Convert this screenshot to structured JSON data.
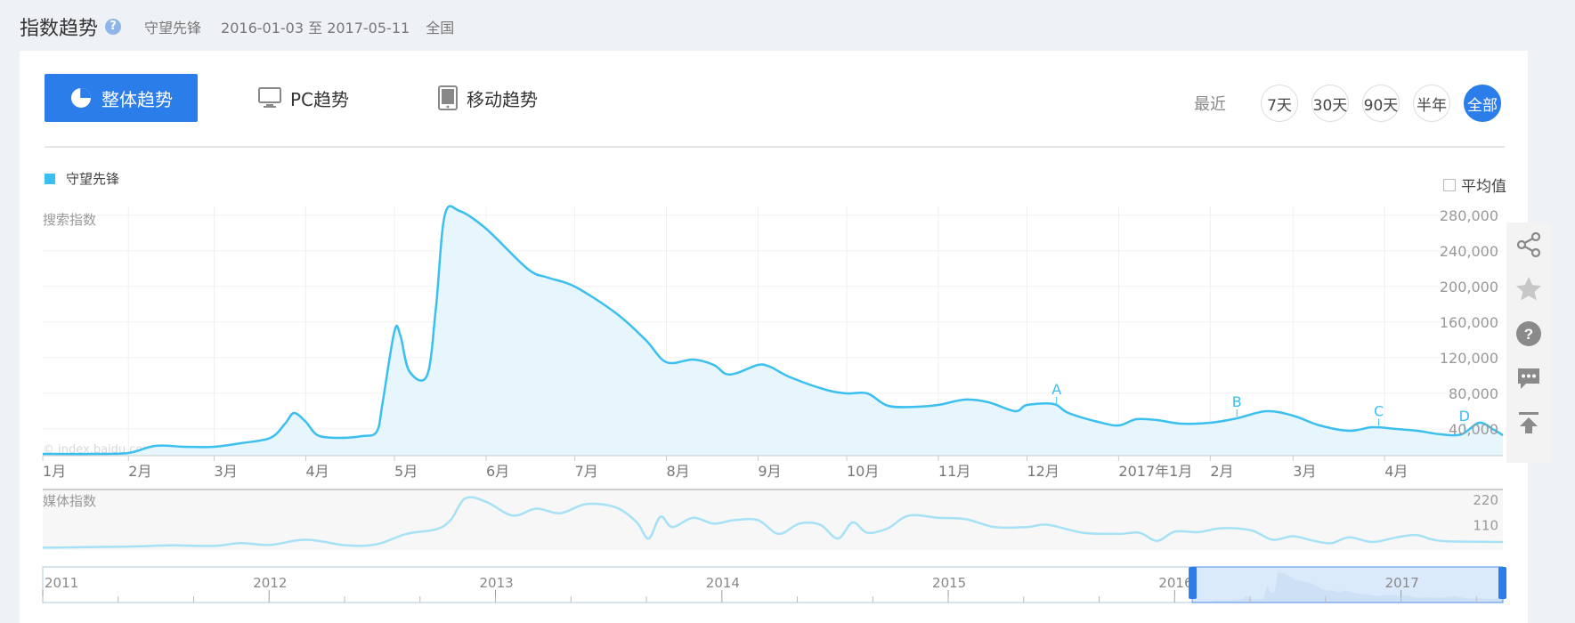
{
  "header": {
    "title": "指数趋势",
    "keyword": "守望先锋",
    "date_range": "2016-01-03 至 2017-05-11",
    "region": "全国"
  },
  "tabs": [
    {
      "label": "整体趋势",
      "active": true,
      "icon": "pie-chart-icon"
    },
    {
      "label": "PC趋势",
      "active": false,
      "icon": "monitor-icon"
    },
    {
      "label": "移动趋势",
      "active": false,
      "icon": "tablet-icon"
    }
  ],
  "range": {
    "label": "最近",
    "buttons": [
      "7天",
      "30天",
      "90天",
      "半年",
      "全部"
    ],
    "selected": "全部"
  },
  "legend": {
    "name": "守望先锋",
    "color": "#3bbfee"
  },
  "avg_label": "平均值",
  "watermark": "© index.baidu.com",
  "side_icons": [
    "share-icon",
    "star-icon",
    "help-icon",
    "comment-icon",
    "back-to-top-icon"
  ],
  "chart_data": [
    {
      "type": "area",
      "ylabel": "搜索指数",
      "x_tick_labels": [
        "1月",
        "2月",
        "3月",
        "4月",
        "5月",
        "6月",
        "7月",
        "8月",
        "9月",
        "10月",
        "11月",
        "12月",
        "2017年1月",
        "2月",
        "3月",
        "4月"
      ],
      "y_tick_labels": [
        "40,000",
        "80,000",
        "120,000",
        "160,000",
        "200,000",
        "240,000",
        "280,000"
      ],
      "ylim": [
        10000,
        290000
      ],
      "grid": true,
      "x_range": [
        "2016-01-03",
        "2017-05-11"
      ],
      "points": [
        [
          "2016-01-03",
          12000
        ],
        [
          "2016-01-20",
          12000
        ],
        [
          "2016-02-01",
          13000
        ],
        [
          "2016-02-10",
          21000
        ],
        [
          "2016-02-20",
          20000
        ],
        [
          "2016-03-01",
          20000
        ],
        [
          "2016-03-10",
          24000
        ],
        [
          "2016-03-20",
          30000
        ],
        [
          "2016-03-25",
          46000
        ],
        [
          "2016-03-28",
          58000
        ],
        [
          "2016-04-01",
          48000
        ],
        [
          "2016-04-05",
          33000
        ],
        [
          "2016-04-12",
          30000
        ],
        [
          "2016-04-20",
          32000
        ],
        [
          "2016-04-25",
          37000
        ],
        [
          "2016-04-27",
          70000
        ],
        [
          "2016-05-01",
          150000
        ],
        [
          "2016-05-03",
          145000
        ],
        [
          "2016-05-06",
          105000
        ],
        [
          "2016-05-12",
          100000
        ],
        [
          "2016-05-15",
          175000
        ],
        [
          "2016-05-18",
          280000
        ],
        [
          "2016-05-23",
          285000
        ],
        [
          "2016-06-01",
          265000
        ],
        [
          "2016-06-15",
          220000
        ],
        [
          "2016-06-22",
          210000
        ],
        [
          "2016-07-01",
          200000
        ],
        [
          "2016-07-15",
          170000
        ],
        [
          "2016-07-25",
          140000
        ],
        [
          "2016-08-01",
          115000
        ],
        [
          "2016-08-10",
          118000
        ],
        [
          "2016-08-17",
          112000
        ],
        [
          "2016-08-21",
          102000
        ],
        [
          "2016-08-25",
          103000
        ],
        [
          "2016-09-01",
          112000
        ],
        [
          "2016-09-05",
          110000
        ],
        [
          "2016-09-12",
          98000
        ],
        [
          "2016-09-24",
          84000
        ],
        [
          "2016-10-01",
          80000
        ],
        [
          "2016-10-08",
          80000
        ],
        [
          "2016-10-15",
          66000
        ],
        [
          "2016-10-25",
          65000
        ],
        [
          "2016-11-01",
          67000
        ],
        [
          "2016-11-10",
          73000
        ],
        [
          "2016-11-18",
          70000
        ],
        [
          "2016-11-27",
          60000
        ],
        [
          "2016-12-01",
          67000
        ],
        [
          "2016-12-10",
          68000
        ],
        [
          "2016-12-15",
          58000
        ],
        [
          "2016-12-25",
          48000
        ],
        [
          "2017-01-01",
          44000
        ],
        [
          "2017-01-07",
          51000
        ],
        [
          "2017-01-14",
          50000
        ],
        [
          "2017-01-22",
          46000
        ],
        [
          "2017-02-01",
          47000
        ],
        [
          "2017-02-10",
          52000
        ],
        [
          "2017-02-20",
          60000
        ],
        [
          "2017-03-01",
          55000
        ],
        [
          "2017-03-10",
          44000
        ],
        [
          "2017-03-20",
          38000
        ],
        [
          "2017-03-28",
          42000
        ],
        [
          "2017-04-05",
          40000
        ],
        [
          "2017-04-12",
          38000
        ],
        [
          "2017-04-20",
          34000
        ],
        [
          "2017-04-27",
          34000
        ],
        [
          "2017-05-03",
          47000
        ],
        [
          "2017-05-08",
          39000
        ],
        [
          "2017-05-11",
          33000
        ]
      ],
      "annotations": [
        {
          "label": "A",
          "date": "2016-12-11"
        },
        {
          "label": "B",
          "date": "2017-02-10"
        },
        {
          "label": "C",
          "date": "2017-03-30"
        },
        {
          "label": "D",
          "date": "2017-04-28"
        }
      ]
    },
    {
      "type": "line",
      "ylabel": "媒体指数",
      "y_tick_labels": [
        "220",
        "110"
      ],
      "ylim": [
        0,
        240
      ],
      "x_range": [
        "2016-01-03",
        "2017-05-11"
      ],
      "points": [
        [
          "2016-01-03",
          10
        ],
        [
          "2016-01-15",
          12
        ],
        [
          "2016-02-01",
          15
        ],
        [
          "2016-02-15",
          20
        ],
        [
          "2016-03-01",
          18
        ],
        [
          "2016-03-10",
          30
        ],
        [
          "2016-03-20",
          22
        ],
        [
          "2016-04-01",
          45
        ],
        [
          "2016-04-15",
          20
        ],
        [
          "2016-04-25",
          25
        ],
        [
          "2016-05-05",
          70
        ],
        [
          "2016-05-15",
          90
        ],
        [
          "2016-05-20",
          130
        ],
        [
          "2016-05-25",
          225
        ],
        [
          "2016-06-01",
          210
        ],
        [
          "2016-06-10",
          150
        ],
        [
          "2016-06-18",
          180
        ],
        [
          "2016-06-26",
          160
        ],
        [
          "2016-07-05",
          200
        ],
        [
          "2016-07-15",
          185
        ],
        [
          "2016-07-22",
          120
        ],
        [
          "2016-07-26",
          50
        ],
        [
          "2016-07-30",
          145
        ],
        [
          "2016-08-03",
          100
        ],
        [
          "2016-08-10",
          140
        ],
        [
          "2016-08-17",
          115
        ],
        [
          "2016-08-24",
          130
        ],
        [
          "2016-09-01",
          130
        ],
        [
          "2016-09-08",
          70
        ],
        [
          "2016-09-15",
          115
        ],
        [
          "2016-09-22",
          110
        ],
        [
          "2016-09-28",
          50
        ],
        [
          "2016-10-03",
          120
        ],
        [
          "2016-10-08",
          75
        ],
        [
          "2016-10-15",
          95
        ],
        [
          "2016-10-22",
          150
        ],
        [
          "2016-11-01",
          140
        ],
        [
          "2016-11-10",
          135
        ],
        [
          "2016-11-20",
          100
        ],
        [
          "2016-12-01",
          100
        ],
        [
          "2016-12-08",
          110
        ],
        [
          "2016-12-20",
          75
        ],
        [
          "2017-01-01",
          70
        ],
        [
          "2017-01-08",
          75
        ],
        [
          "2017-01-14",
          40
        ],
        [
          "2017-01-20",
          80
        ],
        [
          "2017-01-28",
          78
        ],
        [
          "2017-02-05",
          95
        ],
        [
          "2017-02-15",
          85
        ],
        [
          "2017-02-22",
          45
        ],
        [
          "2017-03-01",
          60
        ],
        [
          "2017-03-08",
          40
        ],
        [
          "2017-03-14",
          30
        ],
        [
          "2017-03-20",
          55
        ],
        [
          "2017-03-28",
          35
        ],
        [
          "2017-04-05",
          55
        ],
        [
          "2017-04-12",
          65
        ],
        [
          "2017-04-20",
          40
        ],
        [
          "2017-05-11",
          35
        ]
      ]
    },
    {
      "type": "area",
      "role": "range-navigator",
      "x_tick_labels": [
        "2011",
        "2012",
        "2013",
        "2014",
        "2015",
        "2016",
        "2017"
      ],
      "selection": [
        "2016-01-03",
        "2017-05-11"
      ]
    }
  ]
}
